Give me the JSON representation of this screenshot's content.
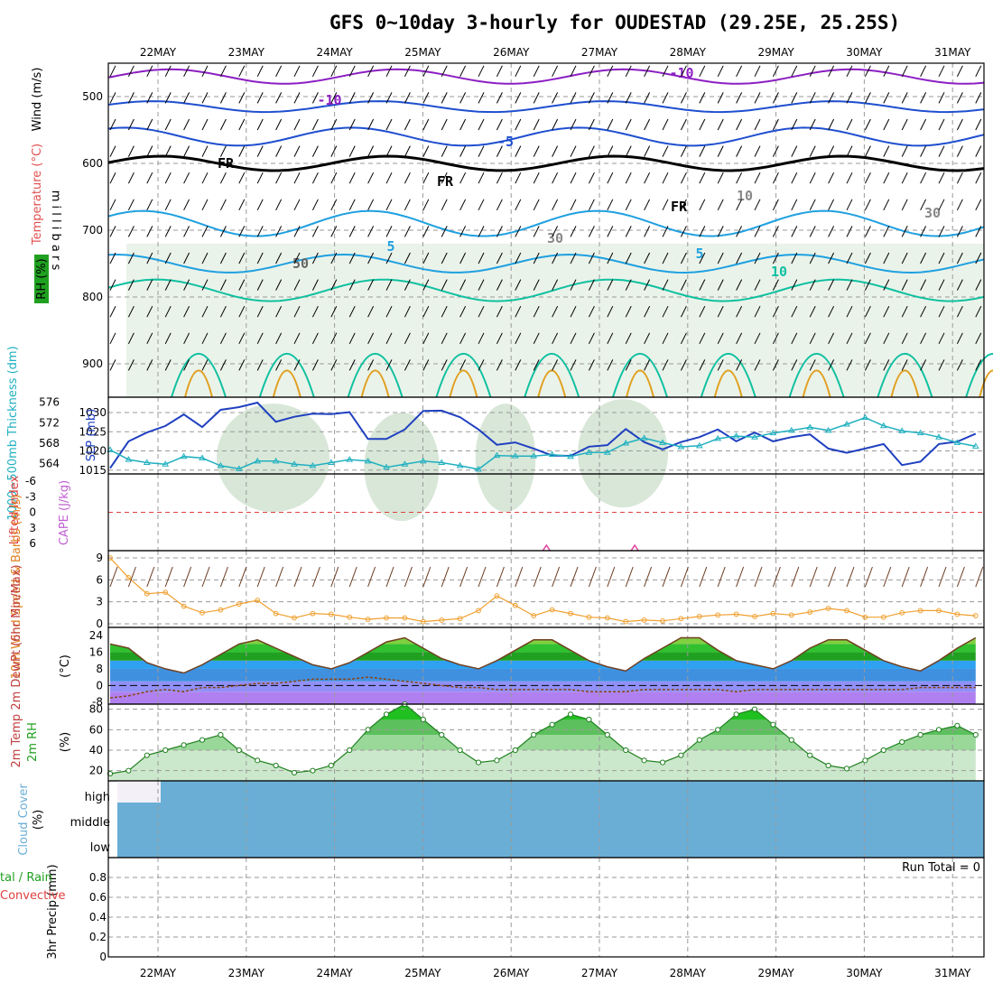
{
  "title": "GFS 0~10day 3-hourly for OUDESTAD (29.25E, 25.25S)",
  "dates": [
    "22MAY",
    "23MAY",
    "24MAY",
    "25MAY",
    "26MAY",
    "27MAY",
    "28MAY",
    "29MAY",
    "30MAY",
    "31MAY"
  ],
  "colors": {
    "sea_blue": "#6aaed6",
    "temp_purple": "#8b1fc2",
    "temp_blue": "#1f4fcf",
    "temp_cyan": "#1fa0e0",
    "temp_teal": "#10c0a0",
    "temp_orange": "#e0a020",
    "slp": "#2040c0",
    "thickness": "#20b0c0",
    "wind10m": "#f0a030",
    "rh": "#20a020"
  },
  "chart_data": [
    {
      "type": "contour",
      "panel": "upper-air",
      "ylabel_parts": [
        "Wind (m/s)",
        "Temperature (°C)",
        "RH (%)"
      ],
      "axis_label": "m i l l i b a r s",
      "yticks": [
        "500",
        "600",
        "700",
        "800",
        "900"
      ],
      "ylim": [
        450,
        950
      ],
      "contour_labels": [
        "-10",
        "-10",
        "-5",
        "FR",
        "FR",
        "FR",
        "5",
        "5",
        "10",
        "50",
        "30",
        "30",
        "10"
      ],
      "isotherm_levels_mb": {
        "-10": [
          470,
          515
        ],
        "-5": [
          560
        ],
        "FR": [
          600,
          625,
          660
        ],
        "5": [
          690,
          710,
          750
        ],
        "10": [
          770,
          800
        ]
      }
    },
    {
      "type": "line",
      "panel": "slp-thickness",
      "ylabel_left": "1000~500mb Thickness (dm)",
      "ylabel_right": "SLP (mb)",
      "yticks_left": [
        "564",
        "568",
        "572",
        "576"
      ],
      "yticks_right": [
        "1015",
        "1020",
        "1025",
        "1030"
      ],
      "ylim_slp": [
        1014,
        1034
      ],
      "series": [
        {
          "name": "SLP (mb)",
          "values": [
            1015.5,
            1022.5,
            1024.8,
            1026.5,
            1029.5,
            1026.2,
            1030.7,
            1031.4,
            1032.6,
            1027.6,
            1028.9,
            1029.7,
            1029.6,
            1030.1,
            1023.1,
            1023.1,
            1025.6,
            1030.4,
            1030.5,
            1028.8,
            1025.6,
            1021.6,
            1022.2,
            1020.6,
            1018.8,
            1018.7,
            1021.1,
            1021.5,
            1025.7,
            1022.3,
            1020.4,
            1022.3,
            1023.6,
            1025.6,
            1022.5,
            1024.8,
            1022.5,
            1023.6,
            1024.3,
            1020.6,
            1019.5,
            1020.6,
            1021.8,
            1016.3,
            1017.2,
            1021.8,
            1022.4,
            1024.5
          ]
        },
        {
          "name": "Thickness (dm)",
          "values": [
            566.7,
            564.8,
            564.2,
            563.9,
            565.4,
            565.1,
            563.6,
            563.0,
            564.5,
            564.5,
            563.9,
            563.6,
            564.2,
            564.8,
            564.5,
            563.3,
            563.9,
            564.5,
            564.2,
            563.6,
            562.9,
            565.6,
            565.5,
            565.5,
            565.8,
            565.4,
            566.2,
            566.2,
            568.0,
            569.0,
            568.1,
            567.3,
            567.5,
            568.9,
            569.4,
            569.2,
            570.0,
            570.5,
            571.1,
            570.5,
            571.7,
            573.0,
            571.4,
            570.4,
            570.0,
            569.2,
            568.1,
            567.4
          ]
        }
      ]
    },
    {
      "type": "line",
      "panel": "stability",
      "ylabel_left": "Lifted Index",
      "ylabel_right": "CAPE (J/kg)",
      "yticks": [
        "-6",
        "-3",
        "0",
        "3",
        "6"
      ],
      "ylim": [
        -6,
        6
      ],
      "cape_peaks": [
        {
          "date_index": 4.4,
          "value": 0.4
        },
        {
          "date_index": 5.4,
          "value": 0.3
        }
      ]
    },
    {
      "type": "line",
      "panel": "wind10m",
      "ylabel": "10m Wind Speed & Barbs (m/s)",
      "yticks": [
        "0",
        "3",
        "6",
        "9"
      ],
      "ylim": [
        0,
        9
      ],
      "series": [
        {
          "name": "10m Wind",
          "values": [
            9.0,
            6.3,
            4.1,
            4.3,
            2.4,
            1.5,
            1.9,
            2.7,
            3.2,
            1.4,
            0.8,
            1.4,
            1.3,
            0.9,
            0.6,
            0.8,
            0.8,
            0.3,
            0.5,
            0.7,
            1.8,
            3.8,
            2.5,
            1.1,
            1.9,
            1.4,
            0.9,
            0.8,
            0.3,
            0.5,
            0.4,
            0.7,
            1.0,
            1.2,
            1.3,
            1.0,
            1.4,
            1.2,
            1.6,
            2.1,
            1.8,
            0.9,
            0.9,
            1.5,
            1.8,
            1.8,
            1.3,
            1.1
          ]
        }
      ]
    },
    {
      "type": "area",
      "panel": "temperature",
      "ylabel": "2m Temp 2m DewPt (6hr Min/Max)",
      "units": "(°C)",
      "yticks": [
        "-8",
        "0",
        "8",
        "16",
        "24"
      ],
      "ylim": [
        -8,
        28
      ],
      "series": [
        {
          "name": "2m Temp",
          "values": [
            20.0,
            18.0,
            11.0,
            8.0,
            6.0,
            10.0,
            15.0,
            20.0,
            22.0,
            18.0,
            14.0,
            10.0,
            8.0,
            11.0,
            16.0,
            21.0,
            23.0,
            18.0,
            13.0,
            10.0,
            8.0,
            12.0,
            17.0,
            22.0,
            22.0,
            17.0,
            12.0,
            9.0,
            7.0,
            13.0,
            18.0,
            23.0,
            23.0,
            17.0,
            12.0,
            10.0,
            8.0,
            12.0,
            18.0,
            22.0,
            22.0,
            17.0,
            12.0,
            9.0,
            7.0,
            12.0,
            18.0,
            23.0
          ]
        },
        {
          "name": "2m DewPt",
          "values": [
            -6.0,
            -5.0,
            -3.0,
            -2.0,
            -3.0,
            -1.0,
            -1.0,
            0.0,
            1.0,
            1.0,
            2.0,
            3.0,
            3.0,
            3.0,
            4.0,
            3.0,
            2.0,
            1.0,
            0.0,
            -1.0,
            -1.0,
            -2.0,
            -2.0,
            -2.0,
            -2.0,
            -2.0,
            -3.0,
            -3.0,
            -3.0,
            -2.0,
            -2.0,
            -2.0,
            -2.0,
            -2.0,
            -3.0,
            -2.0,
            -2.0,
            -2.0,
            -2.0,
            -2.0,
            -2.0,
            -2.0,
            -2.0,
            -2.0,
            -1.0,
            -1.0,
            -1.0,
            -1.0
          ]
        }
      ]
    },
    {
      "type": "area",
      "panel": "rh2m",
      "ylabel": "2m RH",
      "units": "(%)",
      "yticks": [
        "20",
        "40",
        "60",
        "80"
      ],
      "ylim": [
        10,
        85
      ],
      "series": [
        {
          "name": "2m RH",
          "values": [
            17.0,
            20.0,
            35.0,
            40.0,
            45.0,
            50.0,
            55.0,
            40.0,
            30.0,
            25.0,
            18.0,
            20.0,
            25.0,
            40.0,
            60.0,
            75.0,
            85.0,
            70.0,
            55.0,
            40.0,
            28.0,
            30.0,
            40.0,
            55.0,
            65.0,
            75.0,
            70.0,
            55.0,
            40.0,
            30.0,
            28.0,
            35.0,
            50.0,
            60.0,
            75.0,
            80.0,
            65.0,
            50.0,
            35.0,
            25.0,
            22.0,
            30.0,
            40.0,
            48.0,
            55.0,
            60.0,
            64.0,
            55.0
          ]
        }
      ]
    },
    {
      "type": "heatmap",
      "panel": "cloud",
      "ylabel": "Cloud Cover",
      "units": "(%)",
      "levels": [
        "high",
        "middle",
        "low"
      ]
    },
    {
      "type": "bar",
      "panel": "precip",
      "ylabel": "3hr Precip (mm)",
      "legend_left": [
        "tal / Rain",
        "Convective"
      ],
      "yticks": [
        "0",
        "0.2",
        "0.4",
        "0.6",
        "0.8"
      ],
      "ylim": [
        0,
        1
      ],
      "run_total_label": "Run Total = 0",
      "values": []
    }
  ]
}
